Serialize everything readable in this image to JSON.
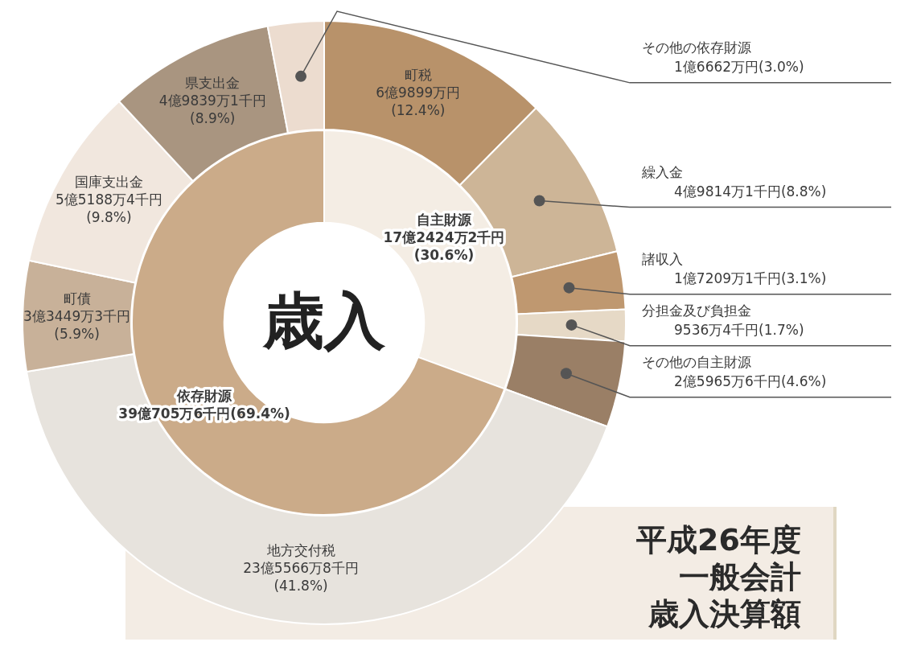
{
  "chart_data": [
    {
      "type": "donut",
      "title": "平成26年度一般会計",
      "subtitle": "歳入決算額",
      "categories": [
        "町税",
        "繰入金",
        "諸収入",
        "分担金及び負担金",
        "その他の自主財源",
        "地方交付税",
        "町債",
        "国庫支出金",
        "県支出金",
        "その他の依存財源"
      ],
      "values": [
        12.4,
        8.8,
        3.1,
        1.7,
        4.6,
        41.8,
        5.9,
        9.8,
        8.9,
        3.0
      ],
      "colors": [
        "#b8926a",
        "#cdb597",
        "#bf9870",
        "#e6d9c6",
        "#9a7f66",
        "#e7e3dd",
        "#c8b199",
        "#f1e7de",
        "#a99580",
        "#ecdccf"
      ],
      "value_labels": [
        "6億9899万円(12.4%)",
        "4億9814万1千円(8.8%)",
        "1億7209万1千円(3.1%)",
        "9536万4千円(1.7%)",
        "2億5965万6千円(4.6%)",
        "23億5566万8千円(41.8%)",
        "3億3449万3千円(5.9%)",
        "5億5188万4千円(9.8%)",
        "4億9839万1千円(8.9%)",
        "1億6662万円(3.0%)"
      ]
    },
    {
      "type": "donut",
      "categories": [
        "自主財源",
        "依存財源"
      ],
      "values": [
        30.6,
        69.4
      ],
      "colors": [
        "#f4ede4",
        "#cbab89"
      ],
      "value_labels": [
        "17億2424万2千円(30.6%)",
        "39億705万6千円(69.4%)"
      ],
      "annotations": [
        "歳入"
      ]
    }
  ]
}
